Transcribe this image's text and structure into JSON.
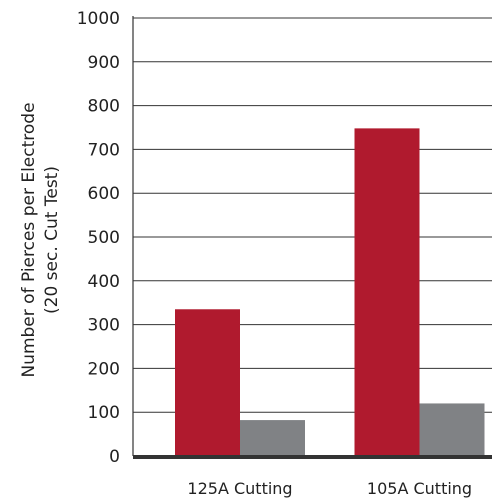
{
  "chart_data": {
    "type": "bar",
    "categories": [
      "125A Cutting",
      "105A Cutting"
    ],
    "series": [
      {
        "values": [
          335,
          748
        ],
        "color": "#b01a2e"
      },
      {
        "values": [
          82,
          120
        ],
        "color": "#808285"
      }
    ],
    "title": "",
    "xlabel": "",
    "ylabel": "Number of Pierces per Electrode",
    "ylabel2": "(20 sec. Cut Test)",
    "ylim": [
      0,
      1000
    ],
    "yticks": [
      0,
      100,
      200,
      300,
      400,
      500,
      600,
      700,
      800,
      900,
      1000
    ],
    "grid": true,
    "legend": "none"
  },
  "colors": {
    "grid": "#333333",
    "axis": "#333333",
    "text": "#222222"
  }
}
